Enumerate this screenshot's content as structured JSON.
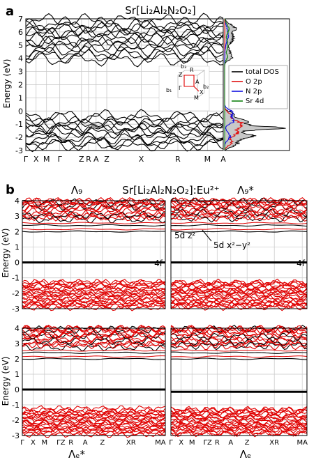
{
  "panel_a": {
    "letter": "a",
    "title": "Sr[Li₂Al₂N₂O₂]",
    "ylabel": "Energy (eV)",
    "kpath": [
      "Γ",
      "X",
      "M",
      "Γ",
      "Z",
      "R",
      "A",
      "Z",
      "X",
      "R",
      "M",
      "A"
    ],
    "inset": {
      "labels": [
        "b₃",
        "Z",
        "R",
        "A",
        "Γ",
        "b₁",
        "b₂",
        "M",
        "X"
      ]
    }
  },
  "panel_b": {
    "letter": "b",
    "title": "Sr[Li₂Al₂N₂O₂]:Eu²⁺",
    "ylabel": "Energy (eV)",
    "kpath": [
      "Γ",
      "X",
      "M",
      "ΓZ",
      "R",
      "A",
      "Z",
      "XR",
      "MA"
    ],
    "labels": {
      "tl": "Λ₉",
      "tr": "Λ₉*",
      "bl": "Λₑ*",
      "br": "Λₑ",
      "f4": "4f",
      "dz2": "5d z²",
      "dx2y2": "5d x²−y²"
    }
  },
  "chart_data": [
    {
      "type": "line",
      "id": "a-band-structure",
      "title": "Sr[Li₂Al₂N₂O₂]",
      "ylabel": "Energy (eV)",
      "ylim": [
        -3,
        7
      ],
      "yticks": [
        -3,
        -2,
        -1,
        0,
        1,
        2,
        3,
        4,
        5,
        6,
        7
      ],
      "xticklabels": [
        "Γ",
        "X",
        "M",
        "Γ",
        "Z",
        "R",
        "A",
        "Z",
        "X",
        "R",
        "M",
        "A"
      ],
      "grid": true,
      "band_gap_region": [
        0,
        3.6
      ],
      "series_summary": {
        "conduction_bands_min": 3.6,
        "valence_bands_max": 0
      }
    },
    {
      "type": "line",
      "id": "a-dos",
      "legend": [
        "total DOS",
        "O 2p",
        "N 2p",
        "Sr 4d"
      ],
      "legend_colors": [
        "#000000",
        "#e01010",
        "#1010e0",
        "#108010"
      ],
      "legend_position": "right",
      "ylim": [
        -3,
        7
      ]
    },
    {
      "type": "line",
      "id": "b-top-left",
      "label": "Λg",
      "ylim": [
        -3,
        4
      ],
      "yticks": [
        -3,
        -2,
        -1,
        0,
        1,
        2,
        3,
        4
      ],
      "xticklabels": [],
      "states": {
        "f4_level": 0,
        "d_levels": [
          2.0,
          2.4
        ]
      }
    },
    {
      "type": "line",
      "id": "b-top-right",
      "label": "Λg*",
      "ylim": [
        -3,
        4
      ],
      "yticks": [
        -3,
        -2,
        -1,
        0,
        1,
        2,
        3,
        4
      ],
      "xticklabels": [],
      "states": {
        "f4_level": 0,
        "d_levels": [
          2.0,
          2.4
        ]
      }
    },
    {
      "type": "line",
      "id": "b-bottom-left",
      "label": "Λe*",
      "ylim": [
        -3,
        4
      ],
      "yticks": [
        -3,
        -2,
        -1,
        0,
        1,
        2,
        3,
        4
      ],
      "xticklabels": [
        "Γ",
        "X",
        "M",
        "ΓZ",
        "R",
        "A",
        "Z",
        "XR",
        "MA"
      ],
      "states": {
        "f4_level": 0,
        "d_levels": [
          2.0,
          2.4
        ]
      }
    },
    {
      "type": "line",
      "id": "b-bottom-right",
      "label": "Λe",
      "ylim": [
        -3,
        4
      ],
      "yticks": [
        -3,
        -2,
        -1,
        0,
        1,
        2,
        3,
        4
      ],
      "xticklabels": [
        "Γ",
        "X",
        "M",
        "ΓZ",
        "R",
        "A",
        "Z",
        "XR",
        "MA"
      ],
      "states": {
        "f4_level": -0.15,
        "d_levels": [
          2.0,
          2.4
        ]
      }
    }
  ],
  "colors": {
    "black_bands": "#000000",
    "red_bands": "#e00000",
    "grid": "#c8c8c8",
    "dos_fill": "#c8c8c8"
  }
}
